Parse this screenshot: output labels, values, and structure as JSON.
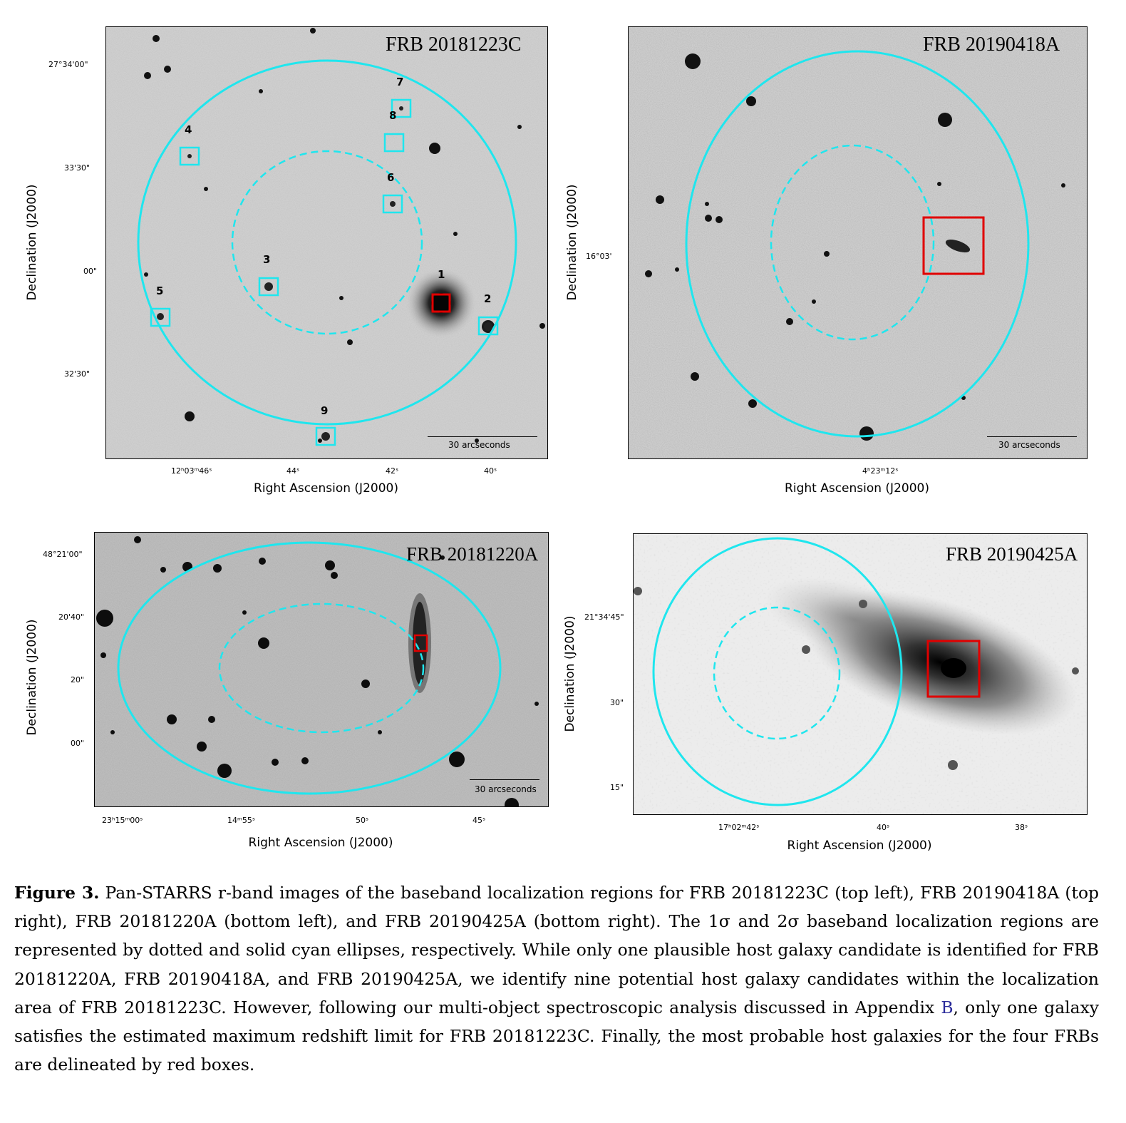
{
  "panels": {
    "tl": {
      "title": "FRB 20181223C",
      "scalebar": "30 arcseconds",
      "ylabel": "Declination (J2000)",
      "xlabel": "Right Ascension (J2000)",
      "yticks": [
        "27°34'00\"",
        "33'30\"",
        "00\"",
        "32'30\""
      ],
      "xticks": [
        "12ʰ03ᵐ46ˢ",
        "44ˢ",
        "42ˢ",
        "40ˢ"
      ],
      "candidates": [
        "1",
        "2",
        "3",
        "4",
        "5",
        "6",
        "7",
        "8",
        "9"
      ]
    },
    "tr": {
      "title": "FRB 20190418A",
      "scalebar": "30 arcseconds",
      "ylabel": "Declination (J2000)",
      "xlabel": "Right Ascension (J2000)",
      "yticks": [
        "16°03'"
      ],
      "xticks": [
        "4ʰ23ᵐ12ˢ"
      ]
    },
    "bl": {
      "title": "FRB 20181220A",
      "scalebar": "30 arcseconds",
      "ylabel": "Declination (J2000)",
      "xlabel": "Right Ascension (J2000)",
      "yticks": [
        "48°21'00\"",
        "20'40\"",
        "20\"",
        "00\""
      ],
      "xticks": [
        "23ʰ15ᵐ00ˢ",
        "14ᵐ55ˢ",
        "50ˢ",
        "45ˢ"
      ]
    },
    "br": {
      "title": "FRB 20190425A",
      "ylabel": "Declination (J2000)",
      "xlabel": "Right Ascension (J2000)",
      "yticks": [
        "21°34'45\"",
        "30\"",
        "15\""
      ],
      "xticks": [
        "17ʰ02ᵐ42ˢ",
        "40ˢ",
        "38ˢ"
      ]
    }
  },
  "caption": {
    "label": "Figure 3.",
    "part1": " Pan-STARRS r-band images of the baseband localization regions for FRB 20181223C (top left), FRB 20190418A (top right), FRB 20181220A (bottom left), and FRB 20190425A (bottom right). The 1σ and 2σ baseband localization regions are represented by dotted and solid cyan ellipses, respectively. While only one plausible host galaxy candidate is identified for FRB 20181220A, FRB 20190418A, and FRB 20190425A, we identify nine potential host galaxy candidates within the localization area of FRB 20181223C. However, following our multi-object spectroscopic analysis discussed in Appendix ",
    "ref": "B",
    "part2": ", only one galaxy satisfies the estimated maximum redshift limit for FRB 20181223C. Finally, the most probable host galaxies for the four FRBs are delineated by red boxes."
  }
}
